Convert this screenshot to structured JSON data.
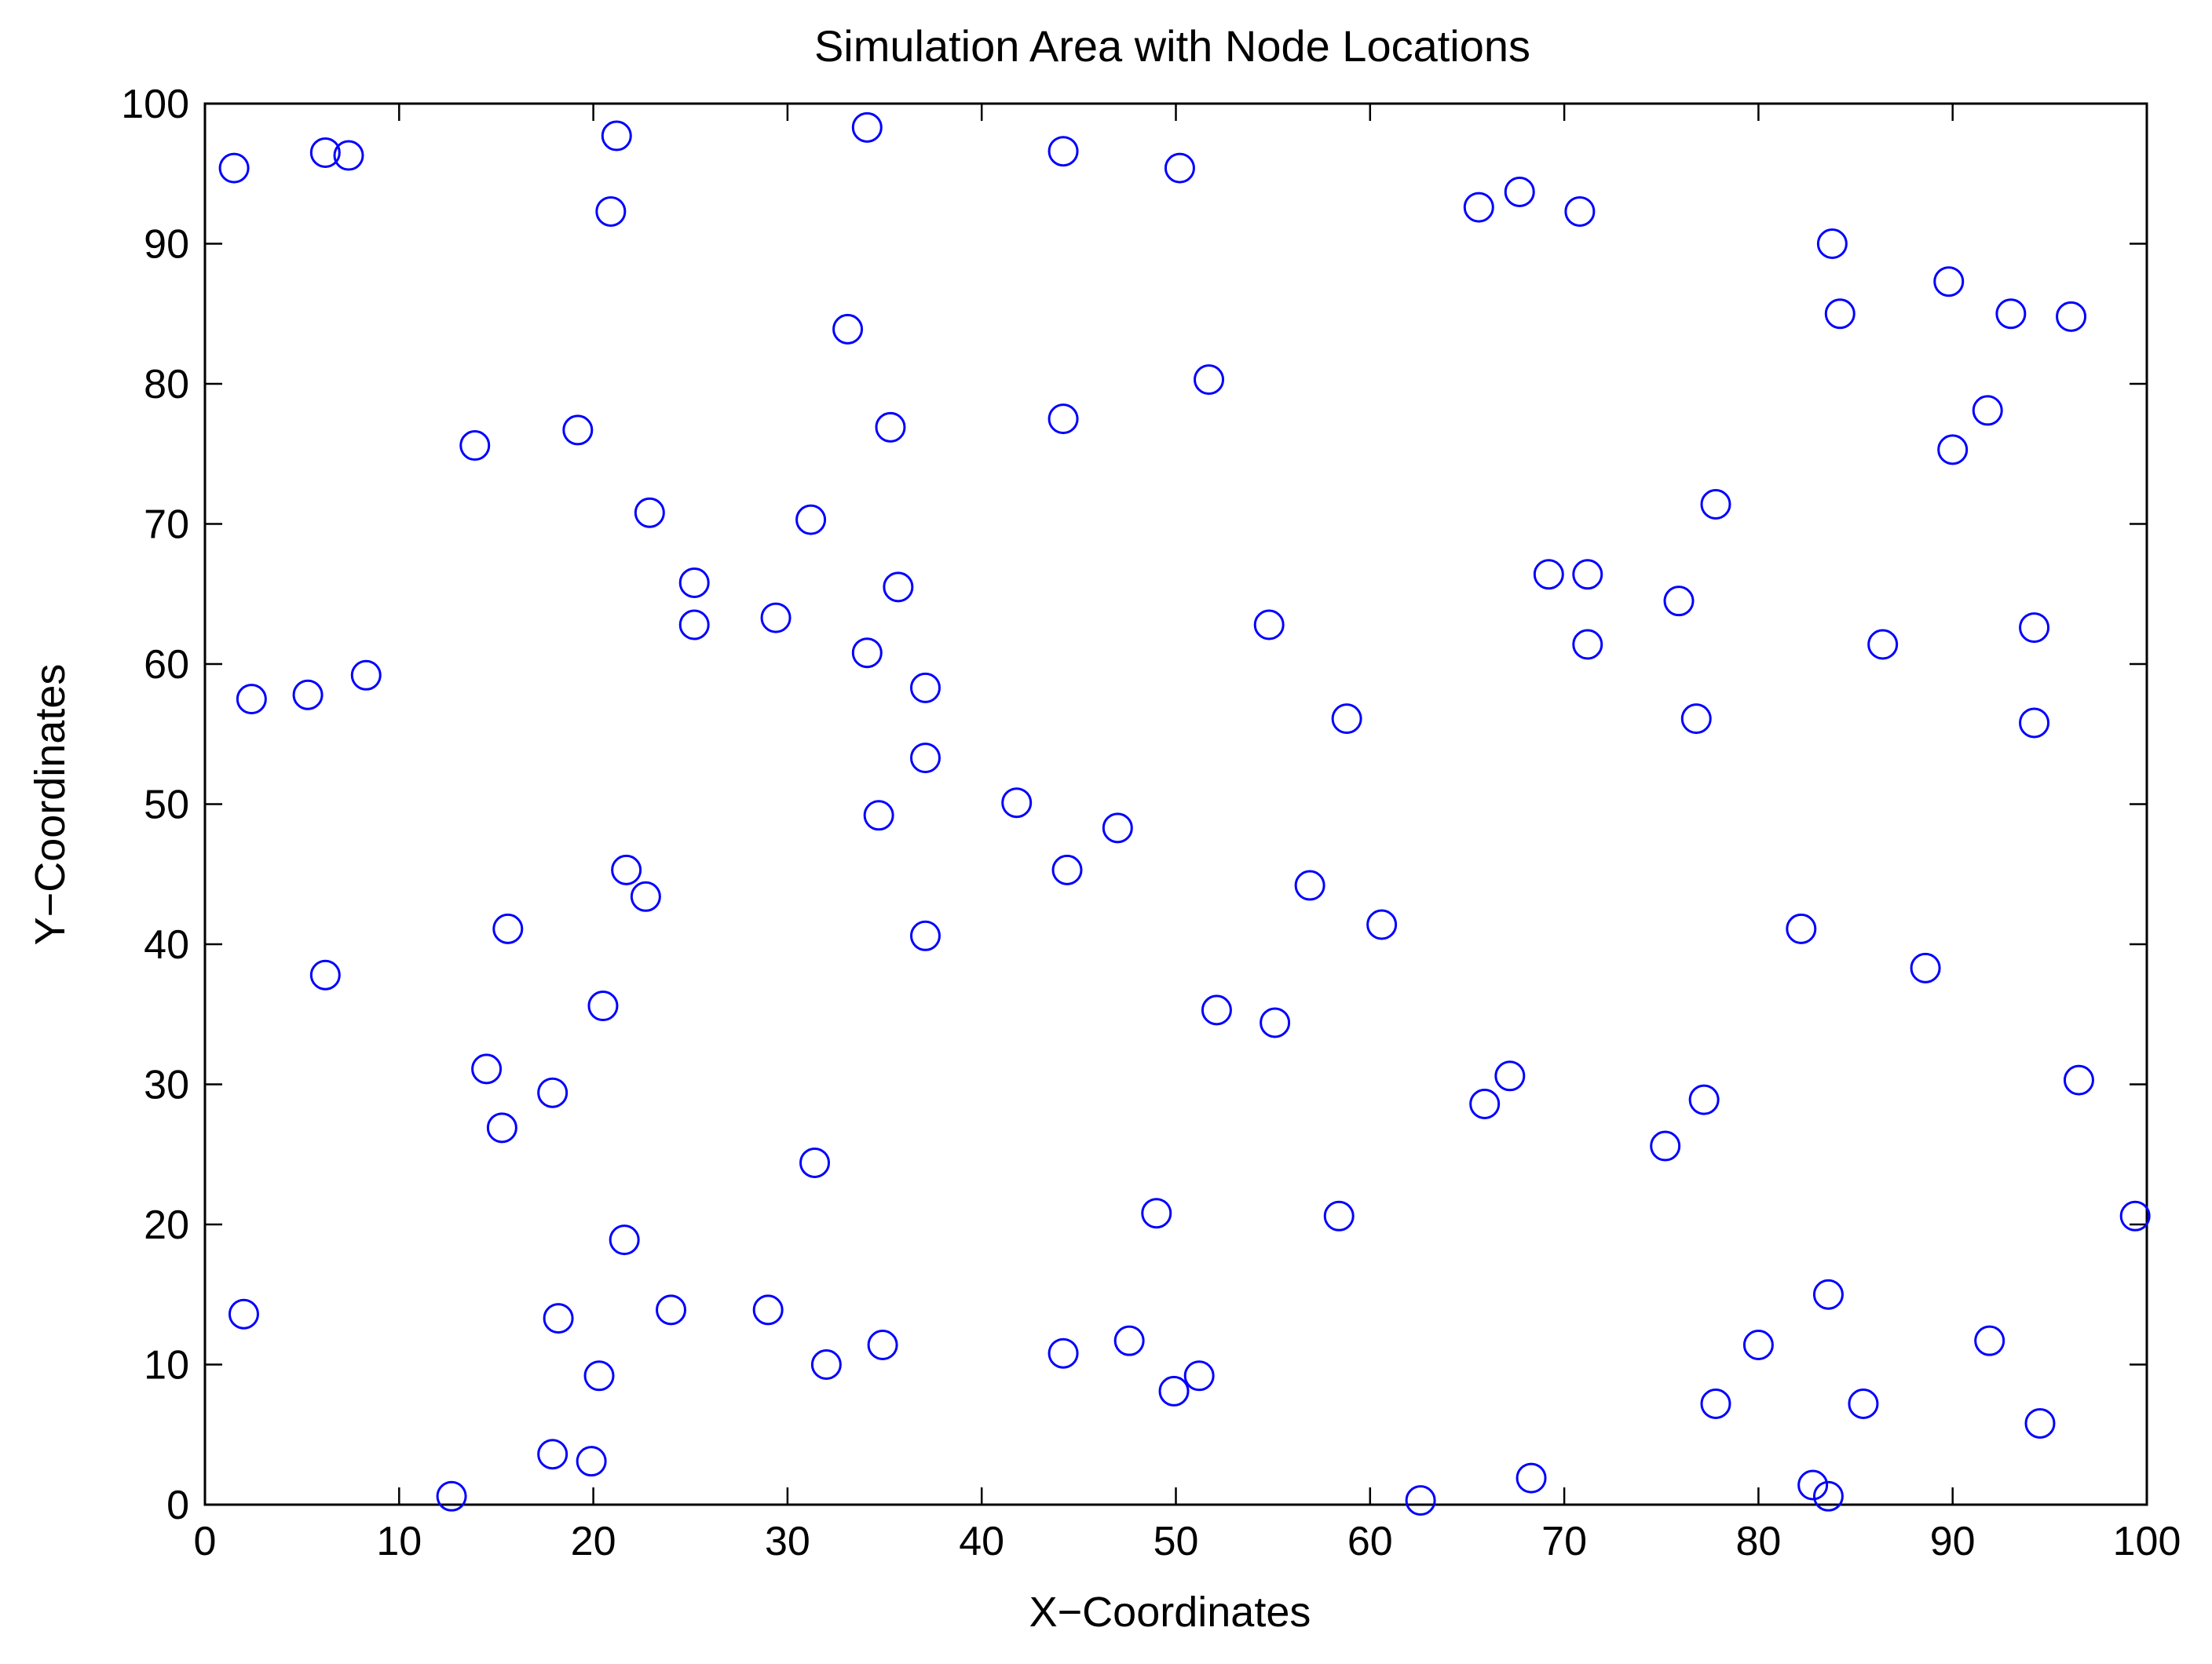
{
  "chart_data": {
    "type": "scatter",
    "title": "Simulation Area with Node Locations",
    "xlabel": "X−Coordinates",
    "ylabel": "Y−Coordinates",
    "xlim": [
      0,
      100
    ],
    "ylim": [
      0,
      100
    ],
    "xticks": [
      0,
      10,
      20,
      30,
      40,
      50,
      60,
      70,
      80,
      90,
      100
    ],
    "yticks": [
      0,
      10,
      20,
      30,
      40,
      50,
      60,
      70,
      80,
      90,
      100
    ],
    "grid": false,
    "legend": "none",
    "marker": "circle-open",
    "color": "#0000ff",
    "points": [
      [
        1.5,
        95.4
      ],
      [
        6.2,
        96.5
      ],
      [
        7.4,
        96.3
      ],
      [
        21.2,
        97.7
      ],
      [
        34.1,
        98.3
      ],
      [
        44.2,
        96.6
      ],
      [
        50.2,
        95.4
      ],
      [
        20.9,
        92.3
      ],
      [
        65.6,
        92.6
      ],
      [
        67.7,
        93.7
      ],
      [
        70.8,
        92.3
      ],
      [
        83.8,
        90.0
      ],
      [
        89.8,
        87.3
      ],
      [
        84.2,
        85.0
      ],
      [
        93.0,
        85.0
      ],
      [
        96.1,
        84.8
      ],
      [
        33.1,
        83.9
      ],
      [
        51.7,
        80.3
      ],
      [
        44.2,
        77.5
      ],
      [
        35.3,
        76.9
      ],
      [
        19.2,
        76.7
      ],
      [
        13.9,
        75.6
      ],
      [
        91.8,
        78.1
      ],
      [
        90.0,
        75.3
      ],
      [
        77.8,
        71.4
      ],
      [
        22.9,
        70.8
      ],
      [
        31.2,
        70.3
      ],
      [
        25.2,
        65.8
      ],
      [
        35.7,
        65.5
      ],
      [
        69.2,
        66.4
      ],
      [
        71.2,
        66.4
      ],
      [
        75.9,
        64.5
      ],
      [
        25.2,
        62.8
      ],
      [
        29.4,
        63.3
      ],
      [
        54.8,
        62.8
      ],
      [
        94.2,
        62.6
      ],
      [
        86.4,
        61.4
      ],
      [
        71.2,
        61.4
      ],
      [
        34.1,
        60.8
      ],
      [
        37.1,
        58.3
      ],
      [
        2.4,
        57.5
      ],
      [
        5.3,
        57.8
      ],
      [
        8.3,
        59.2
      ],
      [
        58.8,
        56.1
      ],
      [
        76.8,
        56.1
      ],
      [
        94.2,
        55.8
      ],
      [
        37.1,
        53.3
      ],
      [
        41.8,
        50.1
      ],
      [
        34.7,
        49.2
      ],
      [
        47.0,
        48.3
      ],
      [
        44.4,
        45.3
      ],
      [
        21.7,
        45.3
      ],
      [
        22.7,
        43.4
      ],
      [
        56.9,
        44.2
      ],
      [
        60.6,
        41.4
      ],
      [
        15.6,
        41.1
      ],
      [
        37.1,
        40.6
      ],
      [
        82.2,
        41.1
      ],
      [
        88.6,
        38.3
      ],
      [
        6.2,
        37.8
      ],
      [
        52.1,
        35.3
      ],
      [
        55.1,
        34.4
      ],
      [
        20.5,
        35.6
      ],
      [
        14.5,
        31.1
      ],
      [
        17.9,
        29.4
      ],
      [
        67.2,
        30.6
      ],
      [
        65.9,
        28.6
      ],
      [
        77.2,
        28.9
      ],
      [
        96.5,
        30.3
      ],
      [
        15.3,
        26.9
      ],
      [
        75.2,
        25.6
      ],
      [
        31.4,
        24.4
      ],
      [
        49.0,
        20.8
      ],
      [
        58.4,
        20.6
      ],
      [
        99.4,
        20.6
      ],
      [
        21.6,
        18.9
      ],
      [
        83.6,
        15.0
      ],
      [
        2.0,
        13.6
      ],
      [
        18.2,
        13.3
      ],
      [
        24.0,
        13.9
      ],
      [
        29.0,
        13.9
      ],
      [
        34.9,
        11.4
      ],
      [
        47.6,
        11.7
      ],
      [
        80.0,
        11.4
      ],
      [
        91.9,
        11.7
      ],
      [
        32.0,
        10.0
      ],
      [
        44.2,
        10.8
      ],
      [
        20.3,
        9.2
      ],
      [
        51.2,
        9.2
      ],
      [
        49.9,
        8.1
      ],
      [
        77.8,
        7.2
      ],
      [
        85.4,
        7.2
      ],
      [
        94.5,
        5.8
      ],
      [
        17.9,
        3.6
      ],
      [
        19.9,
        3.1
      ],
      [
        12.7,
        0.6
      ],
      [
        62.6,
        0.3
      ],
      [
        68.3,
        1.9
      ],
      [
        82.8,
        1.4
      ],
      [
        83.6,
        0.6
      ]
    ]
  }
}
